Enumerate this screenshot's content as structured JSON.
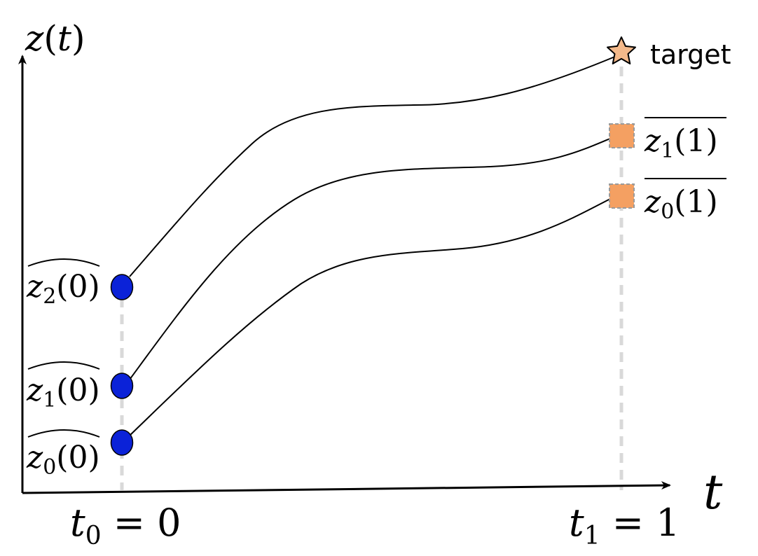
{
  "axes": {
    "y_label": {
      "main": "z",
      "paren_open": "(",
      "var": "t",
      "paren_close": ")"
    },
    "x_label": "t",
    "tick_start": {
      "var": "t",
      "sub": "0",
      "rest": " = 0"
    },
    "tick_end": {
      "var": "t",
      "sub": "1",
      "rest": " = 1"
    }
  },
  "start_points": [
    {
      "var": "z",
      "sub": "2",
      "arg": "(0)",
      "color": "#0b22d8"
    },
    {
      "var": "z",
      "sub": "1",
      "arg": "(0)",
      "color": "#0b22d8"
    },
    {
      "var": "z",
      "sub": "0",
      "arg": "(0)",
      "color": "#0b22d8"
    }
  ],
  "end_points": [
    {
      "kind": "target-star",
      "label": "target",
      "color": "#f4b98a"
    },
    {
      "kind": "square",
      "var": "z",
      "sub": "1",
      "arg": "(1)",
      "color": "#f4a062"
    },
    {
      "kind": "square",
      "var": "z",
      "sub": "0",
      "arg": "(1)",
      "color": "#f4a062"
    }
  ],
  "colors": {
    "dashed_guides": "#d9d9d9",
    "curves": "#000000",
    "axes": "#000000"
  }
}
